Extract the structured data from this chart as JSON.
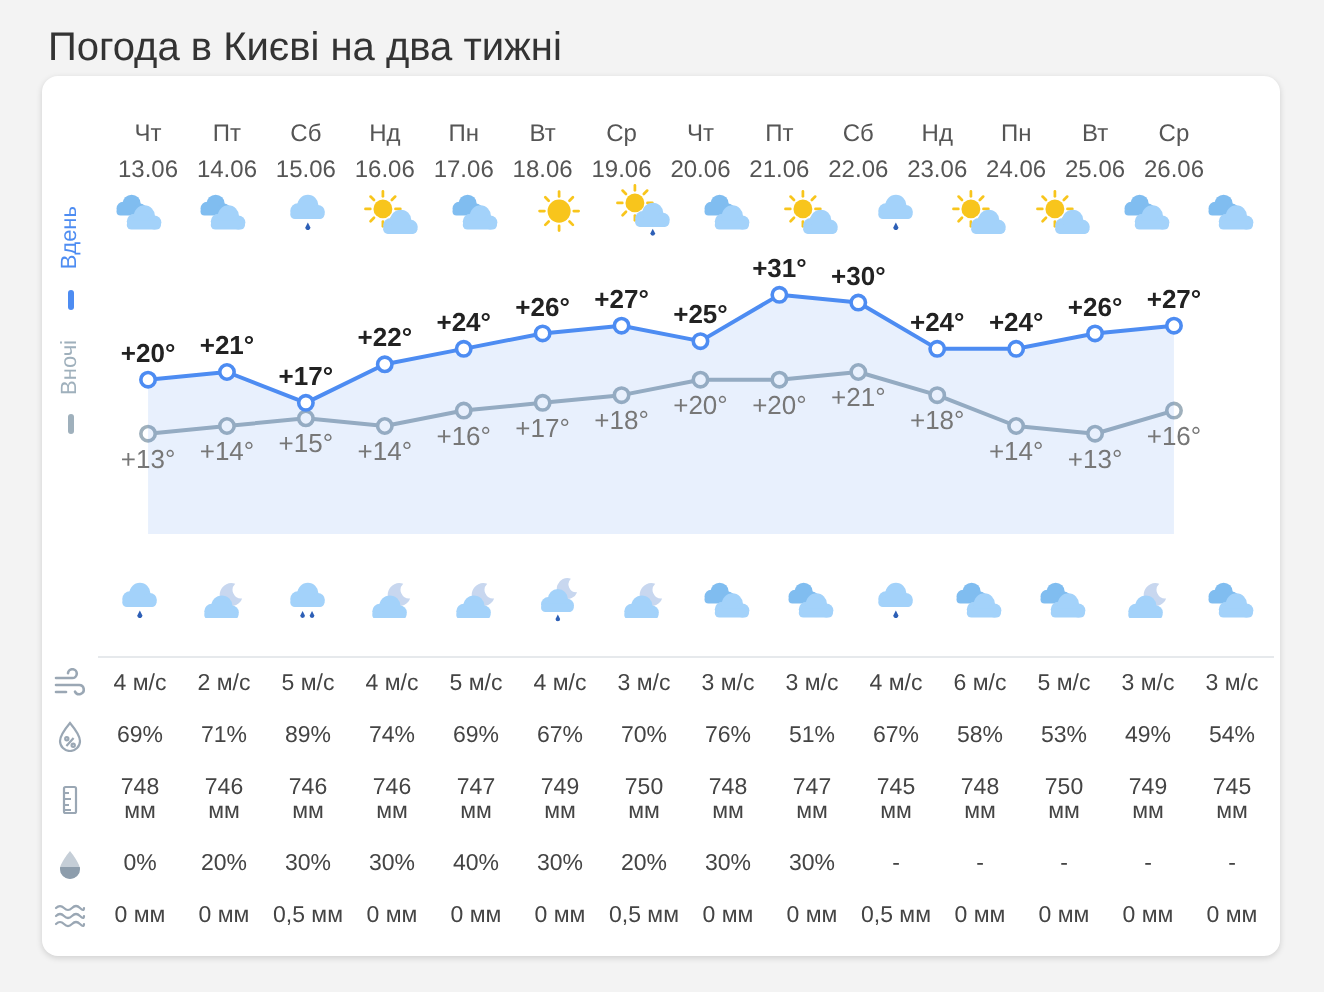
{
  "chart_data": [
    {
      "type": "line",
      "title": "Погода в Києві на два тижні",
      "categories": [
        "Чт 13.06",
        "Пт 14.06",
        "Сб 15.06",
        "Нд 16.06",
        "Пн 17.06",
        "Вт 18.06",
        "Ср 19.06",
        "Чт 20.06",
        "Пт 21.06",
        "Сб 22.06",
        "Нд 23.06",
        "Пн 24.06",
        "Вт 25.06",
        "Ср 26.06"
      ],
      "series": [
        {
          "name": "Вдень",
          "type": "area",
          "color": "#4d8cf2",
          "values": [
            20,
            21,
            17,
            22,
            24,
            26,
            27,
            25,
            31,
            30,
            24,
            24,
            26,
            27
          ],
          "value_labels": [
            "+20°",
            "+21°",
            "+17°",
            "+22°",
            "+24°",
            "+26°",
            "+27°",
            "+25°",
            "+31°",
            "+30°",
            "+24°",
            "+24°",
            "+26°",
            "+27°"
          ]
        },
        {
          "name": "Вночі",
          "color": "#9fb0bc",
          "values": [
            13,
            14,
            15,
            14,
            16,
            17,
            18,
            20,
            20,
            21,
            18,
            14,
            13,
            16
          ],
          "value_labels": [
            "+13°",
            "+14°",
            "+15°",
            "+14°",
            "+16°",
            "+17°",
            "+18°",
            "+20°",
            "+20°",
            "+21°",
            "+18°",
            "+14°",
            "+13°",
            "+16°"
          ]
        }
      ],
      "tick_labels": "x",
      "legend": "left",
      "marker": "circle"
    },
    {
      "type": "other",
      "annotations": [
        "4 м/с",
        "2 м/с",
        "5 м/с",
        "4 м/с",
        "5 м/с",
        "4 м/с",
        "3 м/с",
        "3 м/с",
        "3 м/с",
        "4 м/с",
        "6 м/с",
        "5 м/с",
        "3 м/с",
        "3 м/с",
        "69%",
        "71%",
        "89%",
        "74%",
        "69%",
        "67%",
        "70%",
        "76%",
        "51%",
        "67%",
        "58%",
        "53%",
        "49%",
        "54%",
        "748 мм",
        "746 мм",
        "746 мм",
        "746 мм",
        "747 мм",
        "749 мм",
        "750 мм",
        "748 мм",
        "747 мм",
        "745 мм",
        "748 мм",
        "750 мм",
        "749 мм",
        "745 мм",
        "0%",
        "20%",
        "30%",
        "30%",
        "40%",
        "30%",
        "20%",
        "30%",
        "30%",
        "-",
        "-",
        "-",
        "-",
        "-",
        "0 мм",
        "0 мм",
        "0,5 мм",
        "0 мм",
        "0 мм",
        "0 мм",
        "0,5 мм",
        "0 мм",
        "0 мм",
        "0,5 мм",
        "0 мм",
        "0 мм",
        "0 мм",
        "0 мм"
      ]
    }
  ]
}
